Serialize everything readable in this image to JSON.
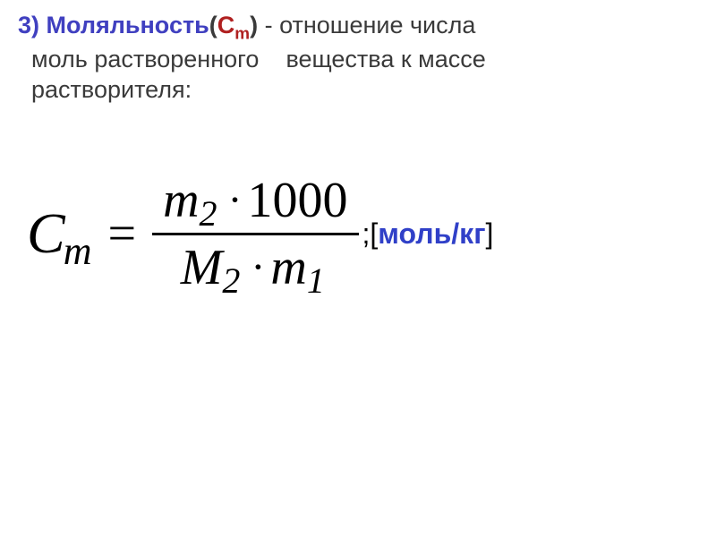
{
  "definition": {
    "number": "3)",
    "term": "Моляльность",
    "symbol_open": "(",
    "symbol_c": "C",
    "symbol_sub": "m",
    "symbol_close": ")",
    "dash": " - ",
    "text_line1": "отношение числа",
    "text_line2": "моль растворенного",
    "text_line3": "вещества к массе",
    "text_line4": "растворителя:"
  },
  "formula": {
    "lhs_var": "C",
    "lhs_sub": "m",
    "equals": "=",
    "numerator": {
      "var": "m",
      "sub": "2",
      "dot": "·",
      "literal": "1000"
    },
    "denominator": {
      "var1": "M",
      "sub1": "2",
      "dot": "·",
      "var2": "m",
      "sub2": "1"
    },
    "unit": {
      "semi": ";",
      "open": "[",
      "text": "моль/кг",
      "close": "]"
    }
  },
  "style": {
    "term_color": "#4040c0",
    "symbol_color": "#b02020",
    "text_color": "#3a3a3a",
    "formula_color": "#000000",
    "unit_color": "#3040c8",
    "background": "#ffffff",
    "def_fontsize": 27,
    "formula_fontsize": 56,
    "lhs_fontsize": 64,
    "unit_fontsize": 32
  }
}
